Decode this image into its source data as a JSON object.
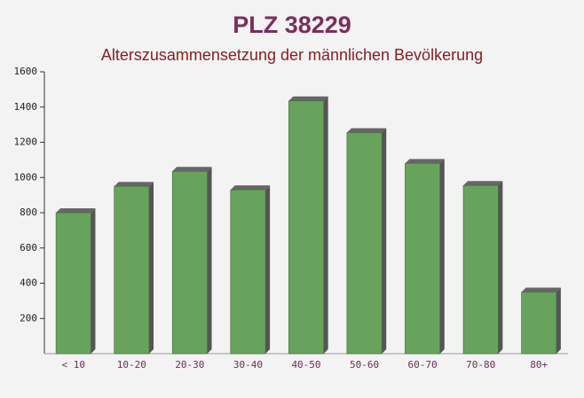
{
  "chart_data": {
    "type": "bar",
    "title": "PLZ 38229",
    "subtitle": "Alterszusammensetzung der männlichen Bevölkerung",
    "categories": [
      "< 10",
      "10-20",
      "20-30",
      "30-40",
      "40-50",
      "50-60",
      "60-70",
      "70-80",
      "80+"
    ],
    "values": [
      800,
      950,
      1035,
      930,
      1435,
      1255,
      1080,
      955,
      350
    ],
    "color": "#67a35c",
    "ylim": [
      0,
      1600
    ],
    "yticks": [
      200,
      400,
      600,
      800,
      1000,
      1200,
      1400,
      1600
    ],
    "grid": false
  }
}
